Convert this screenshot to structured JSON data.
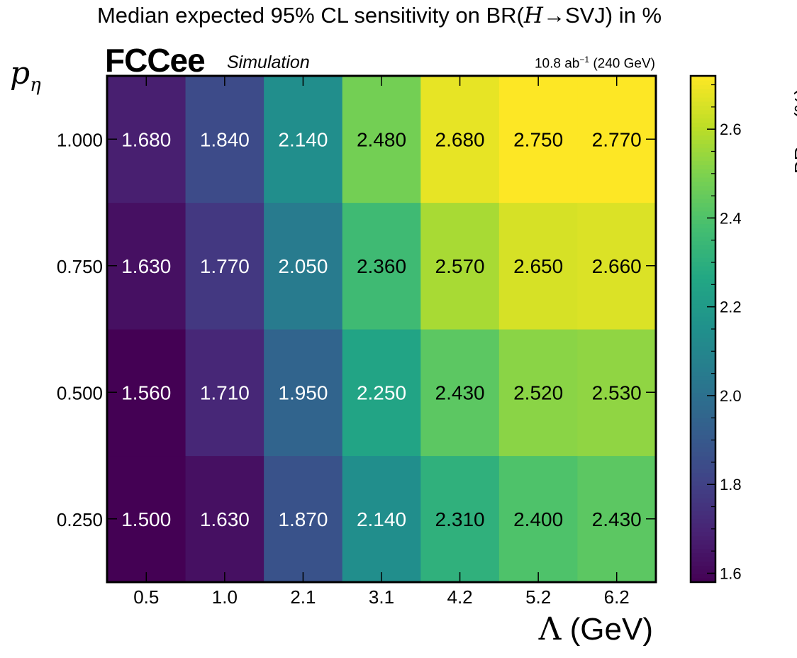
{
  "title_prefix": "Median expected 95% CL sensitivity on BR(",
  "title_h": "H",
  "title_arrow": "→",
  "title_suffix": "SVJ) in %",
  "brand": "FCCee",
  "subtitle": "Simulation",
  "lumi_value": "10.8 ab",
  "lumi_exp": "−1",
  "lumi_energy": "(240 GeV)",
  "ylabel_main": "p",
  "ylabel_sub": "η",
  "xlabel_lambda": "Λ",
  "xlabel_unit": "(GeV)",
  "cb_label_main": "BR",
  "cb_label_sub": "exp",
  "cb_label_unit": "(%)",
  "chart_data": {
    "type": "heatmap",
    "x_categories": [
      "0.5",
      "1.0",
      "2.1",
      "3.1",
      "4.2",
      "5.2",
      "6.2"
    ],
    "y_categories": [
      "0.250",
      "0.500",
      "0.750",
      "1.000"
    ],
    "values": [
      [
        1.5,
        1.63,
        1.87,
        2.14,
        2.31,
        2.4,
        2.43
      ],
      [
        1.56,
        1.71,
        1.95,
        2.25,
        2.43,
        2.52,
        2.53
      ],
      [
        1.63,
        1.77,
        2.05,
        2.36,
        2.57,
        2.65,
        2.66
      ],
      [
        1.68,
        1.84,
        2.14,
        2.48,
        2.68,
        2.75,
        2.77
      ]
    ],
    "colorscale": "viridis",
    "zlim": [
      1.58,
      2.72
    ],
    "colorbar_ticks": [
      "1.6",
      "1.8",
      "2.0",
      "2.2",
      "2.4",
      "2.6"
    ],
    "colorbar_tick_values": [
      1.6,
      1.8,
      2.0,
      2.2,
      2.4,
      2.6
    ],
    "text_color_threshold": 2.3
  }
}
